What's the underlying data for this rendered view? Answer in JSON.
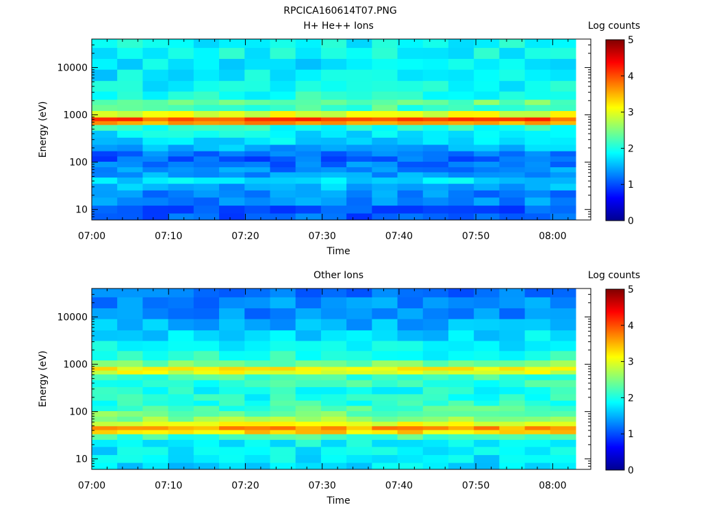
{
  "figure": {
    "title": "RPCICA160614T07.PNG"
  },
  "colorbar": {
    "min": 0,
    "max": 5,
    "tick_labels": [
      "0",
      "1",
      "2",
      "3",
      "4",
      "5"
    ]
  },
  "chart_data": [
    {
      "type": "heatmap",
      "title": "H+ He++ Ions",
      "xlabel": "Time",
      "ylabel": "Energy (eV)",
      "colorbar_label": "Log counts",
      "x_ticks": [
        "07:00",
        "07:10",
        "07:20",
        "07:30",
        "07:40",
        "07:50",
        "08:00"
      ],
      "y_ticks": [
        "10",
        "100",
        "1000",
        "10000"
      ],
      "y_scale": "log",
      "ylim": [
        6,
        40000
      ],
      "x_range": [
        "07:00",
        "08:03"
      ],
      "value_range": [
        0,
        5
      ],
      "energy_rows_eV": [
        7,
        10,
        15,
        22,
        30,
        42,
        55,
        70,
        90,
        120,
        150,
        200,
        280,
        400,
        550,
        700,
        800,
        1000,
        1500,
        1800,
        2500,
        4000,
        7000,
        12000,
        20000,
        35000
      ],
      "profile_log_counts": [
        1.1,
        1.1,
        1.3,
        1.3,
        1.5,
        1.7,
        1.4,
        1.3,
        1.2,
        1.1,
        1.2,
        1.5,
        1.7,
        1.8,
        2.0,
        3.6,
        4.0,
        3.0,
        2.2,
        2.4,
        2.0,
        1.9,
        1.8,
        1.8,
        1.9,
        1.9
      ]
    },
    {
      "type": "heatmap",
      "title": "Other Ions",
      "xlabel": "Time",
      "ylabel": "Energy (eV)",
      "colorbar_label": "Log counts",
      "x_ticks": [
        "07:00",
        "07:10",
        "07:20",
        "07:30",
        "07:40",
        "07:50",
        "08:00"
      ],
      "y_ticks": [
        "10",
        "100",
        "1000",
        "10000"
      ],
      "y_scale": "log",
      "ylim": [
        6,
        40000
      ],
      "x_range": [
        "07:00",
        "08:03"
      ],
      "value_range": [
        0,
        5
      ],
      "energy_rows_eV": [
        7,
        10,
        15,
        22,
        30,
        38,
        45,
        55,
        70,
        90,
        120,
        150,
        200,
        280,
        400,
        550,
        700,
        800,
        1000,
        1500,
        2500,
        4000,
        7000,
        12000,
        20000,
        35000
      ],
      "profile_log_counts": [
        1.7,
        1.8,
        1.8,
        1.9,
        2.2,
        3.3,
        3.6,
        3.0,
        2.6,
        2.4,
        2.2,
        2.1,
        2.0,
        2.0,
        2.1,
        2.2,
        3.0,
        3.2,
        2.5,
        2.0,
        1.8,
        1.7,
        1.5,
        1.3,
        1.3,
        1.2
      ]
    }
  ]
}
